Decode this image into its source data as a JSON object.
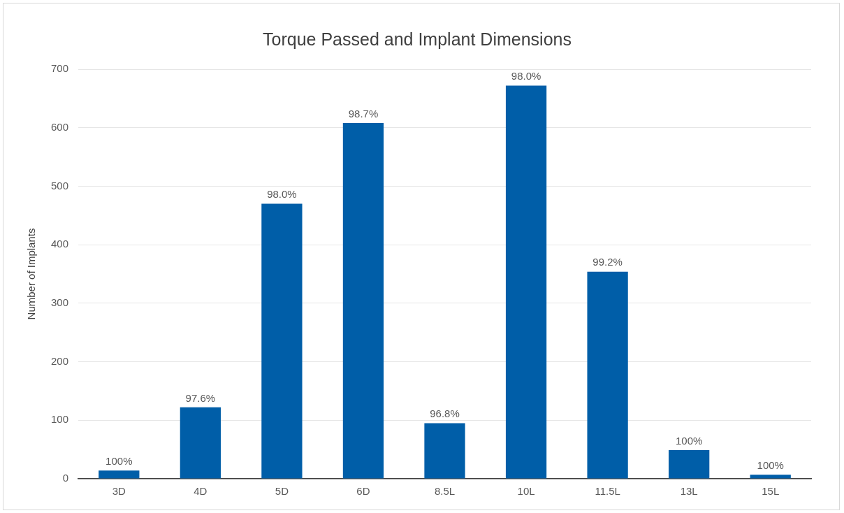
{
  "chart_data": {
    "type": "bar",
    "title": "Torque Passed and Implant Dimensions",
    "ylabel": "Number of Implants",
    "categories": [
      "3D",
      "4D",
      "5D",
      "6D",
      "8.5L",
      "10L",
      "11.5L",
      "13L",
      "15L"
    ],
    "values": [
      14,
      122,
      470,
      608,
      95,
      672,
      354,
      49,
      7
    ],
    "annotations": [
      {
        "text": "100%",
        "x": "3D",
        "y": 14
      },
      {
        "text": "97.6%",
        "x": "4D",
        "y": 122
      },
      {
        "text": "98.0%",
        "x": "5D",
        "y": 470
      },
      {
        "text": "98.7%",
        "x": "6D",
        "y": 608
      },
      {
        "text": "96.8%",
        "x": "8.5L",
        "y": 95
      },
      {
        "text": "98.0%",
        "x": "10L",
        "y": 672
      },
      {
        "text": "99.2%",
        "x": "11.5L",
        "y": 354
      },
      {
        "text": "100%",
        "x": "13L",
        "y": 49
      },
      {
        "text": "100%",
        "x": "15L",
        "y": 7
      }
    ],
    "color": "#005ea8",
    "ylim": [
      0,
      700
    ],
    "yticks": [
      0,
      100,
      200,
      300,
      400,
      500,
      600,
      700
    ],
    "grid": "y",
    "legend": false
  }
}
